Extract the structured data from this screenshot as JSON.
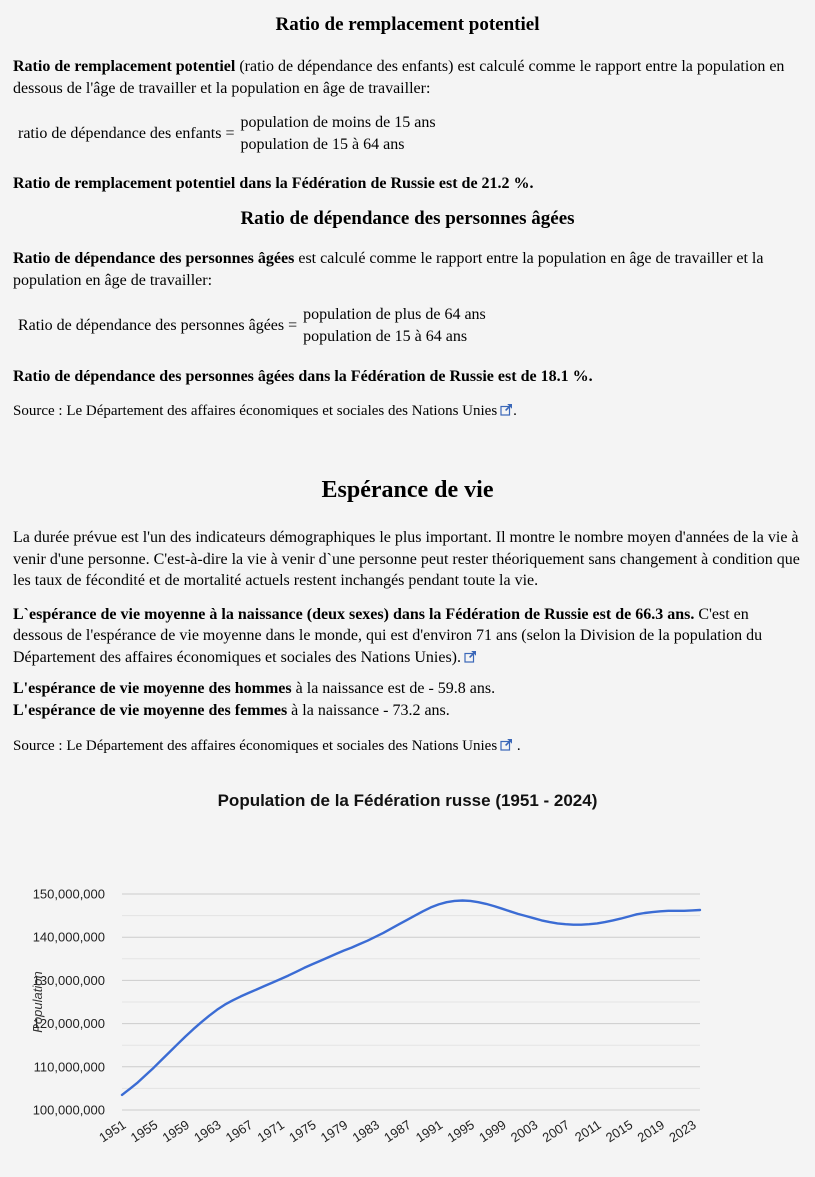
{
  "page": {
    "bg_color": "#f4f4f4"
  },
  "sections": {
    "potential_replacement": {
      "heading": "Ratio de remplacement potentiel",
      "intro_bold": "Ratio de remplacement potentiel",
      "intro_rest": " (ratio de dépendance des enfants) est calculé comme le rapport entre la population en dessous de l'âge de travailler et la population en âge de travailler:",
      "formula_label": "ratio de dépendance des enfants =",
      "formula_numerator": "population de moins de 15 ans",
      "formula_denominator": "population de 15 à 64 ans",
      "result": "Ratio de remplacement potentiel dans la Fédération de Russie est de 21.2 %."
    },
    "old_age_dependency": {
      "heading": "Ratio de dépendance des personnes âgées",
      "intro_bold": "Ratio de dépendance des personnes âgées",
      "intro_rest": " est calculé comme le rapport entre la population en âge de travailler et la population en âge de travailler:",
      "formula_label": "Ratio de dépendance des personnes âgées =",
      "formula_numerator": "population de plus de 64 ans",
      "formula_denominator": "population de 15 à 64 ans",
      "result": "Ratio de dépendance des personnes âgées dans la Fédération de Russie est de 18.1 %.",
      "source_prefix": "Source : ",
      "source_link": "Le Département des affaires économiques et sociales des Nations Unies",
      "source_suffix": "."
    },
    "life_expectancy": {
      "heading": "Espérance de vie",
      "paragraph1": "La durée prévue est l'un des indicateurs démographiques le plus important. Il montre le nombre moyen d'années de la vie à venir d'une personne. C'est-à-dire la vie à venir d`une personne peut rester théoriquement sans changement à condition que les taux de fécondité et de mortalité actuels restent inchangés pendant toute la vie.",
      "bold_statement": "L`espérance de vie moyenne à la naissance (deux sexes) dans la Fédération de Russie est de 66.3 ans.",
      "statement_rest": " C'est en dessous de l'espérance de vie moyenne dans le monde, qui est d'environ 71 ans (selon la Division de la population du Département des affaires économiques et sociales des Nations Unies).",
      "men_bold": "L'espérance de vie moyenne des hommes",
      "men_rest": " à la naissance est de - 59.8 ans.",
      "women_bold": "L'espérance de vie moyenne des femmes",
      "women_rest": " à la naissance - 73.2 ans.",
      "source_prefix": "Source : ",
      "source_link": "Le Département des affaires économiques et sociales des Nations Unies",
      "source_suffix": " ."
    }
  },
  "chart_data": {
    "type": "line",
    "title": "Population de la Fédération russe (1951 - 2024)",
    "xlabel": "",
    "ylabel": "Population",
    "legend": "none",
    "grid": true,
    "ylim": [
      100000000,
      150000000
    ],
    "y_major_step": 10000000,
    "y_minor_step": 5000000,
    "x_ticks": [
      1951,
      1955,
      1959,
      1963,
      1967,
      1971,
      1975,
      1979,
      1983,
      1987,
      1991,
      1995,
      1999,
      2003,
      2007,
      2011,
      2015,
      2019,
      2023
    ],
    "line_color": "#3b6cd4",
    "grid_major_color": "#cccccc",
    "grid_minor_color": "#e3e3e3",
    "tick_text_color": "#222222",
    "axis_title_color": "#333333",
    "years": [
      1951,
      1952,
      1953,
      1954,
      1955,
      1956,
      1957,
      1958,
      1959,
      1960,
      1961,
      1962,
      1963,
      1964,
      1965,
      1966,
      1967,
      1968,
      1969,
      1970,
      1971,
      1972,
      1973,
      1974,
      1975,
      1976,
      1977,
      1978,
      1979,
      1980,
      1981,
      1982,
      1983,
      1984,
      1985,
      1986,
      1987,
      1988,
      1989,
      1990,
      1991,
      1992,
      1993,
      1994,
      1995,
      1996,
      1997,
      1998,
      1999,
      2000,
      2001,
      2002,
      2003,
      2004,
      2005,
      2006,
      2007,
      2008,
      2009,
      2010,
      2011,
      2012,
      2013,
      2014,
      2015,
      2016,
      2017,
      2018,
      2019,
      2020,
      2021,
      2022,
      2023,
      2024
    ],
    "series": [
      {
        "name": "Population",
        "values": [
          103500000,
          104900000,
          106400000,
          108100000,
          109800000,
          111600000,
          113400000,
          115200000,
          117000000,
          118700000,
          120300000,
          121800000,
          123200000,
          124400000,
          125400000,
          126300000,
          127100000,
          127900000,
          128700000,
          129500000,
          130300000,
          131100000,
          132000000,
          132900000,
          133700000,
          134500000,
          135300000,
          136100000,
          136900000,
          137600000,
          138400000,
          139200000,
          140100000,
          141000000,
          142000000,
          143000000,
          144000000,
          145000000,
          146000000,
          146900000,
          147600000,
          148100000,
          148400000,
          148500000,
          148400000,
          148100000,
          147700000,
          147200000,
          146600000,
          146000000,
          145400000,
          144900000,
          144400000,
          143900000,
          143500000,
          143200000,
          143000000,
          142900000,
          142900000,
          143000000,
          143200000,
          143500000,
          143900000,
          144300000,
          144800000,
          145300000,
          145600000,
          145800000,
          146000000,
          146100000,
          146100000,
          146100000,
          146200000,
          146300000
        ]
      }
    ]
  }
}
